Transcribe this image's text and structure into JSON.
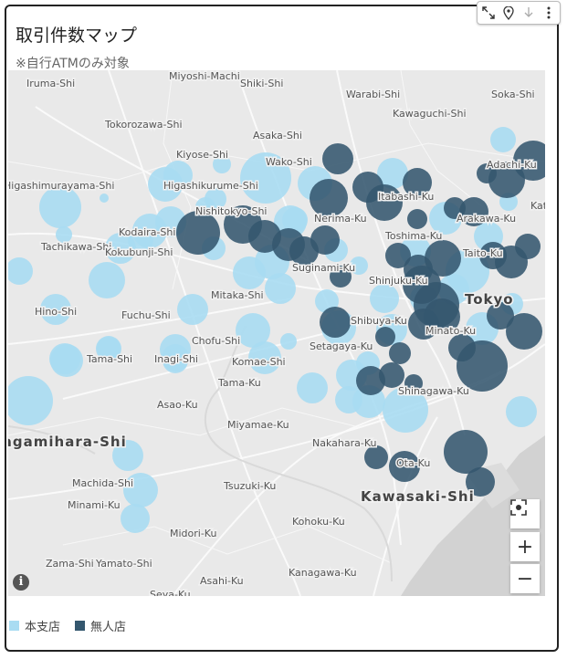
{
  "title": "取引件数マップ",
  "subtitle": "※自行ATMのみ対象",
  "colors": {
    "honshiten": "#a9dcf2",
    "mujinten": "#34576e"
  },
  "legend": [
    {
      "label": "本支店",
      "color": "#a9dcf2"
    },
    {
      "label": "無人店",
      "color": "#34576e"
    }
  ],
  "toolbar_icons": [
    "expand-icon",
    "pin-icon",
    "download-icon",
    "more-icon"
  ],
  "map": {
    "place_labels": [
      "Iruma-Shi",
      "Miyoshi-Machi",
      "Shiki-Shi",
      "Warabi-Shi",
      "Soka-Shi",
      "Tokorozawa-Shi",
      "Kawaguchi-Shi",
      "Asaka-Shi",
      "Kiyose-Shi",
      "Wako-Shi",
      "Adachi-Ku",
      "Higashikurume-Shi",
      "Higashimurayama-Shi",
      "Itabashi-Ku",
      "Nishitokyo-Shi",
      "Nerima-Ku",
      "Arakawa-Ku",
      "Kodaira-Shi",
      "Tachikawa-Shi",
      "Kokubunji-Shi",
      "Toshima-Ku",
      "Taito-Ku",
      "Suginami-Ku",
      "Shinjuku-Ku",
      "Tokyo",
      "Mitaka-Shi",
      "Hino-Shi",
      "Fuchu-Shi",
      "Shibuya-Ku",
      "Minato-Ku",
      "Chofu-Shi",
      "Setagaya-Ku",
      "Tama-Shi",
      "Inagi-Shi",
      "Komae-Shi",
      "Tama-Ku",
      "Asao-Ku",
      "Shinagawa-Ku",
      "Sagamihara-Shi",
      "Miyamae-Ku",
      "Nakahara-Ku",
      "Ota-Ku",
      "Machida-Shi",
      "Tsuzuki-Ku",
      "Minami-Ku",
      "Kawasaki-Shi",
      "Kohoku-Ku",
      "Midori-Ku",
      "Zama-Shi",
      "Yamato-Shi",
      "Asahi-Ku",
      "Kanagawa-Ku",
      "Seya-Ku",
      "Kat"
    ]
  },
  "controls": {
    "zoom_in": "+",
    "zoom_out": "−",
    "info": "i"
  }
}
